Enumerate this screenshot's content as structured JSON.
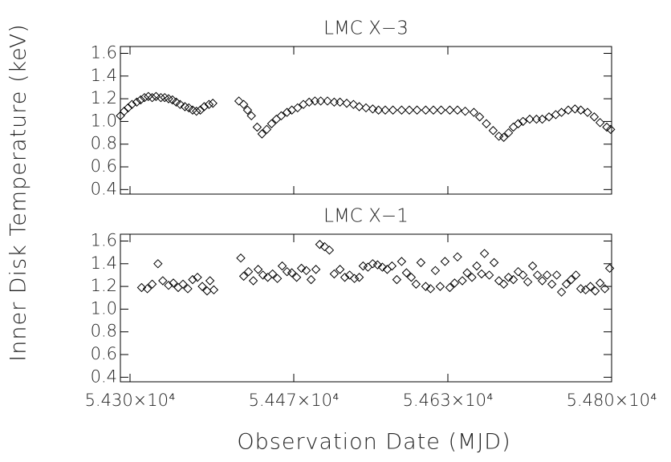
{
  "ylabel": "Inner Disk Temperature (keV)",
  "chart_data": [
    {
      "type": "scatter",
      "title": "LMC X−3",
      "marker": "diamond",
      "color": "#000000",
      "x": [
        54290,
        54294,
        54298,
        54302,
        54307,
        54311,
        54315,
        54319,
        54323,
        54327,
        54332,
        54336,
        54340,
        54344,
        54348,
        54352,
        54357,
        54361,
        54365,
        54369,
        54373,
        54377,
        54382,
        54386,
        54413,
        54418,
        54422,
        54426,
        54432,
        54437,
        54442,
        54447,
        54452,
        54457,
        54463,
        54468,
        54474,
        54480,
        54486,
        54492,
        54498,
        54505,
        54512,
        54518,
        54525,
        54532,
        54538,
        54545,
        54552,
        54558,
        54565,
        54573,
        54582,
        54590,
        54598,
        54607,
        54615,
        54623,
        54632,
        54640,
        54648,
        54657,
        54663,
        54670,
        54677,
        54683,
        54688,
        54693,
        54698,
        54703,
        54708,
        54715,
        54722,
        54728,
        54735,
        54742,
        54748,
        54755,
        54762,
        54768,
        54775,
        54782,
        54788,
        54795,
        54799
      ],
      "values": [
        1.05,
        1.09,
        1.12,
        1.15,
        1.17,
        1.19,
        1.21,
        1.22,
        1.21,
        1.22,
        1.21,
        1.21,
        1.2,
        1.19,
        1.17,
        1.15,
        1.13,
        1.12,
        1.1,
        1.09,
        1.1,
        1.13,
        1.15,
        1.16,
        1.18,
        1.15,
        1.1,
        1.05,
        0.95,
        0.89,
        0.93,
        0.98,
        1.02,
        1.05,
        1.08,
        1.1,
        1.12,
        1.15,
        1.17,
        1.18,
        1.18,
        1.18,
        1.17,
        1.17,
        1.16,
        1.15,
        1.13,
        1.12,
        1.11,
        1.1,
        1.1,
        1.1,
        1.1,
        1.1,
        1.1,
        1.1,
        1.1,
        1.1,
        1.1,
        1.1,
        1.09,
        1.08,
        1.04,
        0.98,
        0.92,
        0.87,
        0.86,
        0.9,
        0.95,
        0.98,
        1.0,
        1.02,
        1.02,
        1.02,
        1.04,
        1.06,
        1.08,
        1.1,
        1.11,
        1.1,
        1.08,
        1.04,
        0.99,
        0.95,
        0.93
      ],
      "xlim": [
        54290,
        54800
      ],
      "xticks": [
        54300,
        54470,
        54630,
        54800
      ],
      "ylim": [
        0.36,
        1.66
      ],
      "yticks": [
        0.4,
        0.6,
        0.8,
        {
          "value": 1,
          "label": "1.0"
        },
        1.2,
        1.4,
        1.6
      ]
    },
    {
      "type": "scatter",
      "title": "LMC X−1",
      "marker": "diamond",
      "color": "#000000",
      "xlabel": "Observation Date (MJD)",
      "x": [
        54312,
        54318,
        54323,
        54329,
        54334,
        54340,
        54345,
        54350,
        54355,
        54360,
        54365,
        54370,
        54375,
        54380,
        54383,
        54387,
        54415,
        54418,
        54423,
        54428,
        54433,
        54438,
        54443,
        54448,
        54453,
        54458,
        54463,
        54468,
        54473,
        54478,
        54483,
        54488,
        54493,
        54497,
        54502,
        54507,
        54512,
        54518,
        54523,
        54528,
        54533,
        54538,
        54542,
        54547,
        54552,
        54557,
        54562,
        54567,
        54572,
        54577,
        54582,
        54587,
        54592,
        54597,
        54602,
        54607,
        54612,
        54617,
        54622,
        54627,
        54632,
        54637,
        54640,
        54645,
        54650,
        54655,
        54660,
        54665,
        54668,
        54673,
        54678,
        54683,
        54688,
        54693,
        54698,
        54703,
        54708,
        54713,
        54718,
        54723,
        54728,
        54733,
        54738,
        54743,
        54748,
        54753,
        54758,
        54763,
        54768,
        54773,
        54778,
        54783,
        54788,
        54793,
        54798
      ],
      "values": [
        1.19,
        1.18,
        1.22,
        1.4,
        1.25,
        1.21,
        1.23,
        1.19,
        1.22,
        1.18,
        1.26,
        1.28,
        1.2,
        1.16,
        1.25,
        1.17,
        1.45,
        1.29,
        1.33,
        1.25,
        1.35,
        1.3,
        1.28,
        1.31,
        1.27,
        1.38,
        1.33,
        1.32,
        1.28,
        1.36,
        1.34,
        1.26,
        1.35,
        1.57,
        1.55,
        1.52,
        1.31,
        1.35,
        1.28,
        1.3,
        1.27,
        1.28,
        1.38,
        1.37,
        1.4,
        1.39,
        1.37,
        1.35,
        1.38,
        1.26,
        1.42,
        1.32,
        1.28,
        1.22,
        1.41,
        1.2,
        1.18,
        1.34,
        1.2,
        1.42,
        1.19,
        1.23,
        1.46,
        1.25,
        1.32,
        1.28,
        1.38,
        1.31,
        1.49,
        1.3,
        1.41,
        1.25,
        1.22,
        1.28,
        1.26,
        1.33,
        1.3,
        1.24,
        1.38,
        1.3,
        1.25,
        1.3,
        1.22,
        1.3,
        1.15,
        1.22,
        1.26,
        1.3,
        1.18,
        1.17,
        1.2,
        1.16,
        1.23,
        1.18,
        1.36
      ],
      "xlim": [
        54290,
        54800
      ],
      "xticks": [
        {
          "value": 54300,
          "label": "5.430×10⁴"
        },
        {
          "value": 54470,
          "label": "5.447×10⁴"
        },
        {
          "value": 54630,
          "label": "5.463×10⁴"
        },
        {
          "value": 54800,
          "label": "5.480×10⁴"
        }
      ],
      "ylim": [
        0.36,
        1.66
      ],
      "yticks": [
        0.4,
        0.6,
        0.8,
        {
          "value": 1,
          "label": "1.0"
        },
        1.2,
        1.4,
        1.6
      ]
    }
  ]
}
